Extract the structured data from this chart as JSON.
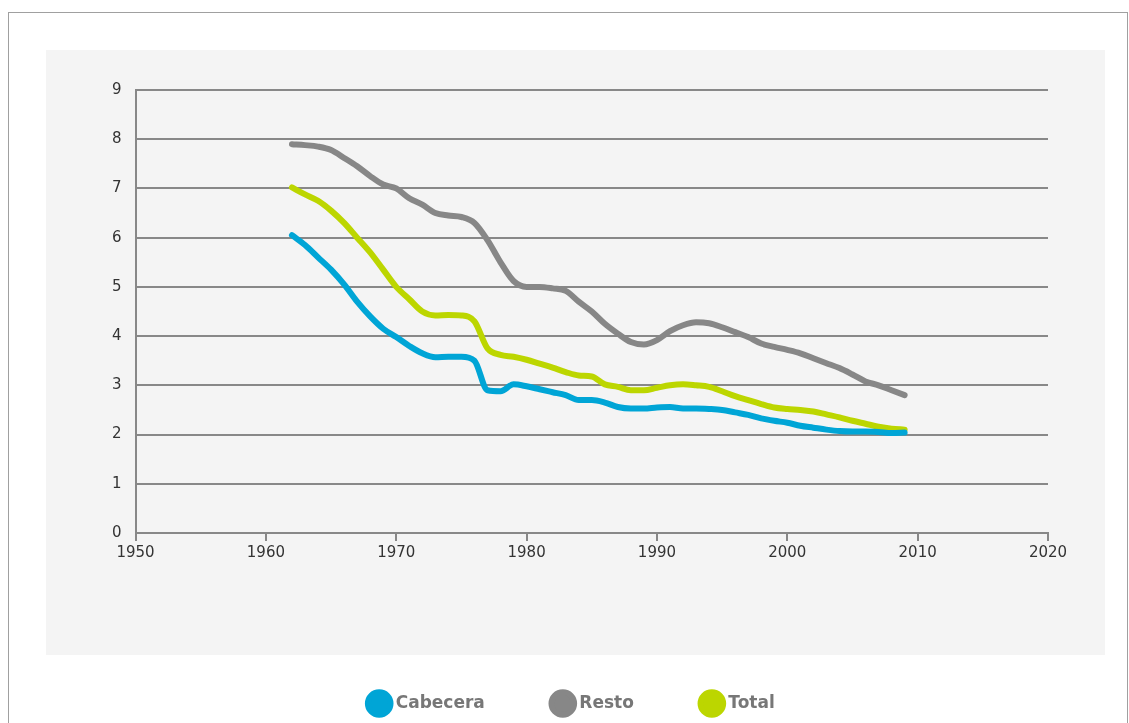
{
  "chart_data": {
    "type": "line",
    "x": [
      1962,
      1963,
      1964,
      1965,
      1966,
      1967,
      1968,
      1969,
      1970,
      1971,
      1972,
      1973,
      1974,
      1975,
      1976,
      1977,
      1978,
      1979,
      1980,
      1981,
      1982,
      1983,
      1984,
      1985,
      1986,
      1987,
      1988,
      1989,
      1990,
      1991,
      1992,
      1993,
      1994,
      1995,
      1996,
      1997,
      1998,
      1999,
      2000,
      2001,
      2002,
      2003,
      2004,
      2005,
      2006,
      2007,
      2008,
      2009
    ],
    "series": [
      {
        "name": "Cabecera",
        "color": "#00a5d6",
        "values": [
          6.05,
          5.85,
          5.6,
          5.35,
          5.05,
          4.7,
          4.4,
          4.15,
          3.98,
          3.8,
          3.65,
          3.57,
          3.58,
          3.58,
          3.5,
          2.9,
          2.88,
          3.02,
          2.98,
          2.92,
          2.86,
          2.8,
          2.7,
          2.7,
          2.65,
          2.56,
          2.53,
          2.53,
          2.55,
          2.56,
          2.53,
          2.53,
          2.52,
          2.5,
          2.45,
          2.4,
          2.33,
          2.28,
          2.24,
          2.18,
          2.14,
          2.1,
          2.07,
          2.06,
          2.06,
          2.05,
          2.03,
          2.04
        ]
      },
      {
        "name": "Resto",
        "color": "#878787",
        "values": [
          7.9,
          7.88,
          7.85,
          7.78,
          7.62,
          7.45,
          7.25,
          7.08,
          7.0,
          6.8,
          6.67,
          6.5,
          6.45,
          6.42,
          6.3,
          5.95,
          5.5,
          5.12,
          5.0,
          5.0,
          4.97,
          4.92,
          4.7,
          4.5,
          4.25,
          4.05,
          3.88,
          3.83,
          3.92,
          4.1,
          4.22,
          4.28,
          4.26,
          4.18,
          4.08,
          3.98,
          3.85,
          3.78,
          3.72,
          3.65,
          3.55,
          3.45,
          3.35,
          3.22,
          3.08,
          3.0,
          2.9,
          2.8
        ]
      },
      {
        "name": "Total",
        "color": "#bcd600",
        "values": [
          7.02,
          6.88,
          6.75,
          6.55,
          6.3,
          6.0,
          5.7,
          5.35,
          5.0,
          4.75,
          4.5,
          4.42,
          4.43,
          4.42,
          4.3,
          3.75,
          3.62,
          3.58,
          3.52,
          3.44,
          3.36,
          3.27,
          3.2,
          3.18,
          3.02,
          2.97,
          2.9,
          2.9,
          2.95,
          3.0,
          3.02,
          3.0,
          2.97,
          2.88,
          2.78,
          2.7,
          2.62,
          2.55,
          2.52,
          2.5,
          2.47,
          2.41,
          2.35,
          2.28,
          2.22,
          2.16,
          2.12,
          2.1
        ]
      }
    ],
    "xlim": [
      1950,
      2020
    ],
    "xticks": [
      1950,
      1960,
      1970,
      1980,
      1990,
      2000,
      2010,
      2020
    ],
    "ylim": [
      0,
      9
    ],
    "yticks": [
      0,
      1,
      2,
      3,
      4,
      5,
      6,
      7,
      8,
      9
    ],
    "grid": "y",
    "legend": "bottom",
    "marker": "none",
    "line_style": "solid"
  }
}
